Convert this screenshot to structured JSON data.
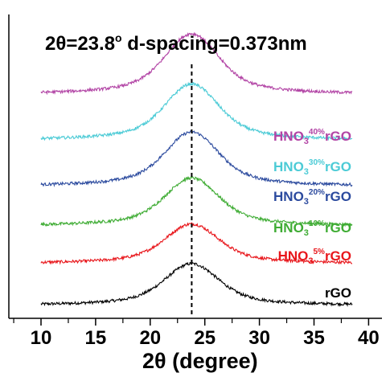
{
  "chart_data": {
    "type": "line",
    "annotation": "2θ=23.8° d-spacing=0.373nm",
    "annotation_parts": {
      "prefix": "2θ=23.8",
      "degree": "o",
      "suffix": " d-spacing=0.373nm"
    },
    "xlabel": "2θ (degree)",
    "ylabel": "",
    "xlim": [
      8,
      42
    ],
    "xticks": [
      10,
      15,
      20,
      25,
      30,
      35,
      40
    ],
    "tick_labels": [
      "10",
      "15",
      "20",
      "25",
      "30",
      "35",
      "40"
    ],
    "reference_line_x": 23.8,
    "x_range": [
      10,
      38.5
    ],
    "series": [
      {
        "label": "rGO",
        "label_parts": {
          "base": "rGO",
          "sub": "",
          "sup": "",
          "tail": ""
        },
        "color": "#000000",
        "peak_x": 23.8,
        "baseline": 0,
        "peak_height": 1.0
      },
      {
        "label": "HNO3 5% rGO",
        "label_parts": {
          "base": "HNO",
          "sub": "3",
          "sup": "5%",
          "tail": "rGO"
        },
        "color": "#e8161b",
        "peak_x": 23.8,
        "baseline": 1.0,
        "peak_height": 0.95
      },
      {
        "label": "HNO3 10% rGO",
        "label_parts": {
          "base": "HNO",
          "sub": "3",
          "sup": "10%",
          "tail": "rGO"
        },
        "color": "#3fac34",
        "peak_x": 23.8,
        "baseline": 1.9,
        "peak_height": 1.15
      },
      {
        "label": "HNO3 20% rGO",
        "label_parts": {
          "base": "HNO",
          "sub": "3",
          "sup": "20%",
          "tail": "rGO"
        },
        "color": "#2b4a9e",
        "peak_x": 23.8,
        "baseline": 2.85,
        "peak_height": 1.3
      },
      {
        "label": "HNO3 30% rGO",
        "label_parts": {
          "base": "HNO",
          "sub": "3",
          "sup": "30%",
          "tail": "rGO"
        },
        "color": "#4ccbd6",
        "peak_x": 23.8,
        "baseline": 3.95,
        "peak_height": 1.35
      },
      {
        "label": "HNO3 40% rGO",
        "label_parts": {
          "base": "HNO",
          "sub": "3",
          "sup": "40%",
          "tail": "rGO"
        },
        "color": "#b244a5",
        "peak_x": 23.8,
        "baseline": 5.05,
        "peak_height": 1.45
      }
    ]
  }
}
